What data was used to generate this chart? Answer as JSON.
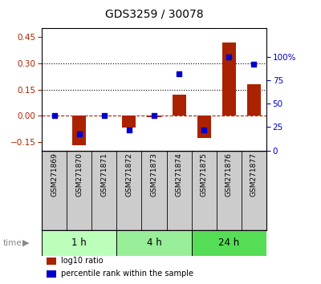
{
  "title": "GDS3259 / 30078",
  "samples": [
    "GSM271869",
    "GSM271870",
    "GSM271871",
    "GSM271872",
    "GSM271873",
    "GSM271874",
    "GSM271875",
    "GSM271876",
    "GSM271877"
  ],
  "log10_ratio": [
    0.0,
    -0.17,
    0.0,
    -0.07,
    -0.01,
    0.12,
    -0.13,
    0.42,
    0.18
  ],
  "percentile_rank_right": [
    37,
    18,
    37,
    22,
    37,
    82,
    22,
    100,
    92
  ],
  "groups": [
    {
      "label": "1 h",
      "start": 0,
      "end": 3,
      "color": "#bbffbb"
    },
    {
      "label": "4 h",
      "start": 3,
      "end": 6,
      "color": "#99ee99"
    },
    {
      "label": "24 h",
      "start": 6,
      "end": 9,
      "color": "#55dd55"
    }
  ],
  "bar_color": "#aa2200",
  "dot_color": "#0000cc",
  "ylim_left": [
    -0.2,
    0.5
  ],
  "ylim_right": [
    0,
    130
  ],
  "yticks_left": [
    -0.15,
    0.0,
    0.15,
    0.3,
    0.45
  ],
  "yticks_right": [
    0,
    25,
    50,
    75,
    100
  ],
  "hlines": [
    0.15,
    0.3
  ],
  "bg_color": "#ffffff",
  "label_bg": "#cccccc",
  "legend_items": [
    {
      "label": "log10 ratio",
      "color": "#aa2200"
    },
    {
      "label": "percentile rank within the sample",
      "color": "#0000cc"
    }
  ]
}
